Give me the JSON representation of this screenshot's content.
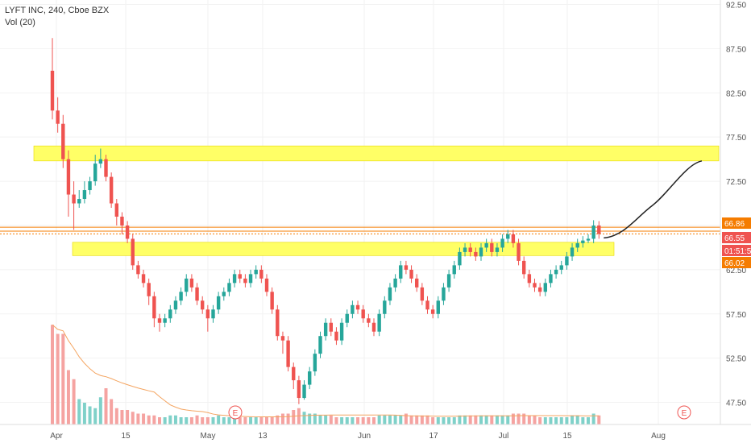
{
  "header": {
    "symbol_line": "LYFT INC, 240, Cboe BZX",
    "volume_line": "Vol (20)"
  },
  "colors": {
    "up": "#26a69a",
    "down": "#ef5350",
    "up_vol": "#7fd1c9",
    "down_vol": "#f5a3a1",
    "zone": "#ffff66",
    "zone_border": "#e6d800",
    "level_line": "#f57c00",
    "projection": "#222222",
    "vol_ma": "#f4a460"
  },
  "chart_data": {
    "type": "candlestick",
    "y_axis_range": [
      45,
      93
    ],
    "y_ticks": [
      "92.50",
      "87.50",
      "82.50",
      "77.50",
      "72.50",
      "67.50",
      "62.50",
      "57.50",
      "52.50",
      "47.50"
    ],
    "x_ticks": [
      "Apr",
      "15",
      "May",
      "13",
      "Jun",
      "17",
      "Jul",
      "15",
      "Aug"
    ],
    "price_tags": [
      {
        "label": "66.86",
        "price": 66.86,
        "color": "#f57c00"
      },
      {
        "label": "66.55",
        "price": 66.55,
        "color": "#ef5350"
      },
      {
        "label": "01:51:5",
        "price": 65.1,
        "color": "#ef5350"
      },
      {
        "label": "66.02",
        "price": 66.02,
        "color": "#f57c00"
      }
    ],
    "zones": [
      {
        "from": 74.8,
        "to": 76.5,
        "start": "2019-03-29",
        "end": "2019-08-31"
      },
      {
        "from": 64.1,
        "to": 65.6,
        "start": "2019-04-03",
        "end": "2019-07-26"
      }
    ],
    "levels": [
      67.3,
      66.86,
      66.55
    ],
    "earnings_markers": [
      "E",
      "E"
    ],
    "projection": {
      "start": [
        65.7,
        66.1
      ],
      "end": [
        74.8,
        74.8
      ]
    },
    "candles": {
      "open": [
        85.0,
        80.5,
        79.0,
        75.0,
        71.0,
        70.0,
        70.5,
        71.5,
        72.5,
        74.5,
        75.0,
        73.0,
        70.0,
        68.5,
        67.5,
        66.0,
        63.0,
        62.0,
        61.0,
        59.5,
        57.0,
        56.5,
        57.0,
        58.0,
        59.0,
        60.0,
        61.5,
        60.5,
        59.0,
        58.0,
        57.0,
        58.0,
        59.5,
        60.0,
        61.0,
        62.0,
        61.5,
        61.0,
        62.0,
        62.5,
        61.5,
        60.0,
        58.0,
        55.0,
        54.5,
        51.5,
        50.0,
        48.0,
        49.5,
        51.0,
        53.0,
        55.0,
        56.5,
        55.5,
        54.5,
        56.5,
        57.5,
        58.5,
        58.0,
        57.0,
        56.5,
        55.5,
        57.5,
        59.0,
        60.5,
        61.5,
        63.0,
        62.5,
        61.5,
        60.5,
        59.0,
        58.0,
        57.5,
        59.0,
        60.5,
        62.0,
        63.0,
        64.5,
        65.0,
        64.5,
        64.0,
        65.0,
        65.5,
        64.5,
        65.0,
        66.0,
        66.5,
        65.5,
        63.5,
        62.0,
        61.0,
        60.5,
        60.0,
        61.0,
        62.0,
        62.5,
        63.0,
        64.0,
        65.0,
        65.5,
        65.8,
        66.0,
        67.5
      ],
      "close": [
        80.5,
        79.0,
        75.0,
        71.0,
        70.0,
        70.5,
        71.5,
        72.5,
        74.5,
        75.0,
        73.0,
        70.0,
        68.5,
        67.5,
        66.0,
        63.0,
        62.0,
        61.0,
        59.5,
        57.0,
        56.5,
        57.0,
        58.0,
        59.0,
        60.0,
        61.5,
        60.5,
        59.0,
        58.0,
        57.0,
        58.0,
        59.5,
        60.0,
        61.0,
        62.0,
        61.5,
        61.0,
        62.0,
        62.5,
        61.5,
        60.0,
        58.0,
        55.0,
        54.5,
        51.5,
        50.0,
        48.0,
        49.5,
        51.0,
        53.0,
        55.0,
        56.5,
        55.5,
        54.5,
        56.5,
        57.5,
        58.5,
        58.0,
        57.0,
        56.5,
        55.5,
        57.5,
        59.0,
        60.5,
        61.5,
        63.0,
        62.5,
        61.5,
        60.5,
        59.0,
        58.0,
        57.5,
        59.0,
        60.5,
        62.0,
        63.0,
        64.5,
        65.0,
        64.5,
        64.0,
        65.0,
        65.5,
        64.5,
        65.0,
        66.0,
        66.5,
        65.5,
        63.5,
        62.0,
        61.0,
        60.5,
        60.0,
        61.0,
        62.0,
        62.5,
        63.0,
        64.0,
        65.0,
        65.5,
        65.8,
        66.0,
        67.5,
        66.55
      ],
      "high": [
        88.7,
        82.0,
        80.0,
        76.0,
        72.5,
        71.5,
        72.5,
        73.0,
        75.5,
        76.2,
        75.5,
        73.5,
        70.5,
        69.0,
        68.0,
        66.5,
        63.5,
        62.5,
        61.5,
        60.0,
        57.5,
        57.5,
        58.5,
        59.5,
        60.5,
        62.0,
        62.0,
        61.0,
        59.5,
        58.5,
        58.5,
        60.0,
        60.5,
        61.5,
        62.5,
        62.5,
        62.0,
        62.5,
        63.0,
        63.0,
        62.0,
        60.5,
        58.5,
        55.5,
        55.0,
        52.0,
        50.5,
        50.0,
        51.5,
        53.5,
        55.5,
        57.0,
        57.0,
        56.0,
        57.0,
        58.0,
        59.0,
        59.0,
        58.5,
        57.5,
        57.0,
        58.0,
        59.5,
        61.0,
        62.0,
        63.5,
        63.5,
        63.0,
        62.0,
        61.0,
        59.5,
        58.5,
        59.5,
        61.0,
        62.5,
        63.5,
        65.0,
        65.5,
        65.5,
        65.0,
        65.5,
        66.0,
        66.0,
        65.5,
        66.5,
        67.0,
        67.0,
        66.0,
        64.0,
        62.5,
        61.5,
        61.0,
        61.5,
        62.5,
        63.0,
        63.5,
        64.5,
        65.5,
        66.0,
        66.3,
        66.5,
        68.1,
        68.0
      ],
      "low": [
        79.5,
        78.0,
        74.0,
        68.5,
        67.0,
        69.5,
        70.0,
        71.0,
        72.0,
        74.0,
        72.5,
        69.5,
        67.5,
        66.5,
        65.5,
        62.5,
        61.5,
        60.5,
        58.5,
        56.0,
        55.5,
        56.0,
        56.5,
        57.5,
        58.5,
        59.5,
        60.0,
        58.5,
        57.5,
        55.5,
        56.5,
        57.5,
        59.0,
        59.5,
        60.5,
        61.0,
        60.5,
        60.5,
        61.5,
        61.0,
        59.5,
        57.5,
        54.5,
        53.0,
        51.0,
        49.0,
        47.3,
        47.8,
        49.0,
        50.5,
        52.5,
        54.5,
        55.0,
        54.0,
        54.0,
        56.0,
        57.0,
        57.5,
        56.5,
        56.0,
        55.0,
        55.0,
        57.0,
        58.5,
        60.0,
        61.0,
        62.0,
        61.0,
        60.0,
        58.5,
        57.5,
        57.0,
        57.0,
        58.5,
        60.0,
        61.5,
        62.5,
        64.0,
        64.0,
        63.5,
        63.5,
        64.5,
        64.0,
        64.0,
        64.5,
        65.5,
        65.0,
        63.0,
        61.5,
        60.5,
        60.0,
        59.5,
        59.5,
        60.5,
        61.5,
        62.0,
        62.5,
        63.5,
        64.5,
        65.0,
        65.5,
        65.5,
        66.0
      ]
    },
    "volume": [
      55,
      50,
      50,
      30,
      25,
      14,
      12,
      10,
      9,
      15,
      20,
      14,
      9,
      8,
      8,
      7,
      6,
      6,
      5,
      5,
      4,
      4,
      5,
      5,
      4,
      4,
      4,
      5,
      4,
      4,
      4,
      5,
      4,
      4,
      4,
      4,
      4,
      4,
      4,
      4,
      4,
      4,
      5,
      6,
      6,
      8,
      9,
      7,
      6,
      6,
      5,
      5,
      5,
      4,
      4,
      4,
      4,
      4,
      4,
      4,
      4,
      5,
      5,
      5,
      5,
      5,
      6,
      5,
      5,
      5,
      5,
      4,
      4,
      4,
      4,
      4,
      5,
      5,
      5,
      5,
      5,
      5,
      5,
      5,
      5,
      5,
      6,
      6,
      6,
      5,
      5,
      4,
      4,
      4,
      4,
      4,
      4,
      5,
      5,
      4,
      4,
      6,
      5
    ]
  }
}
